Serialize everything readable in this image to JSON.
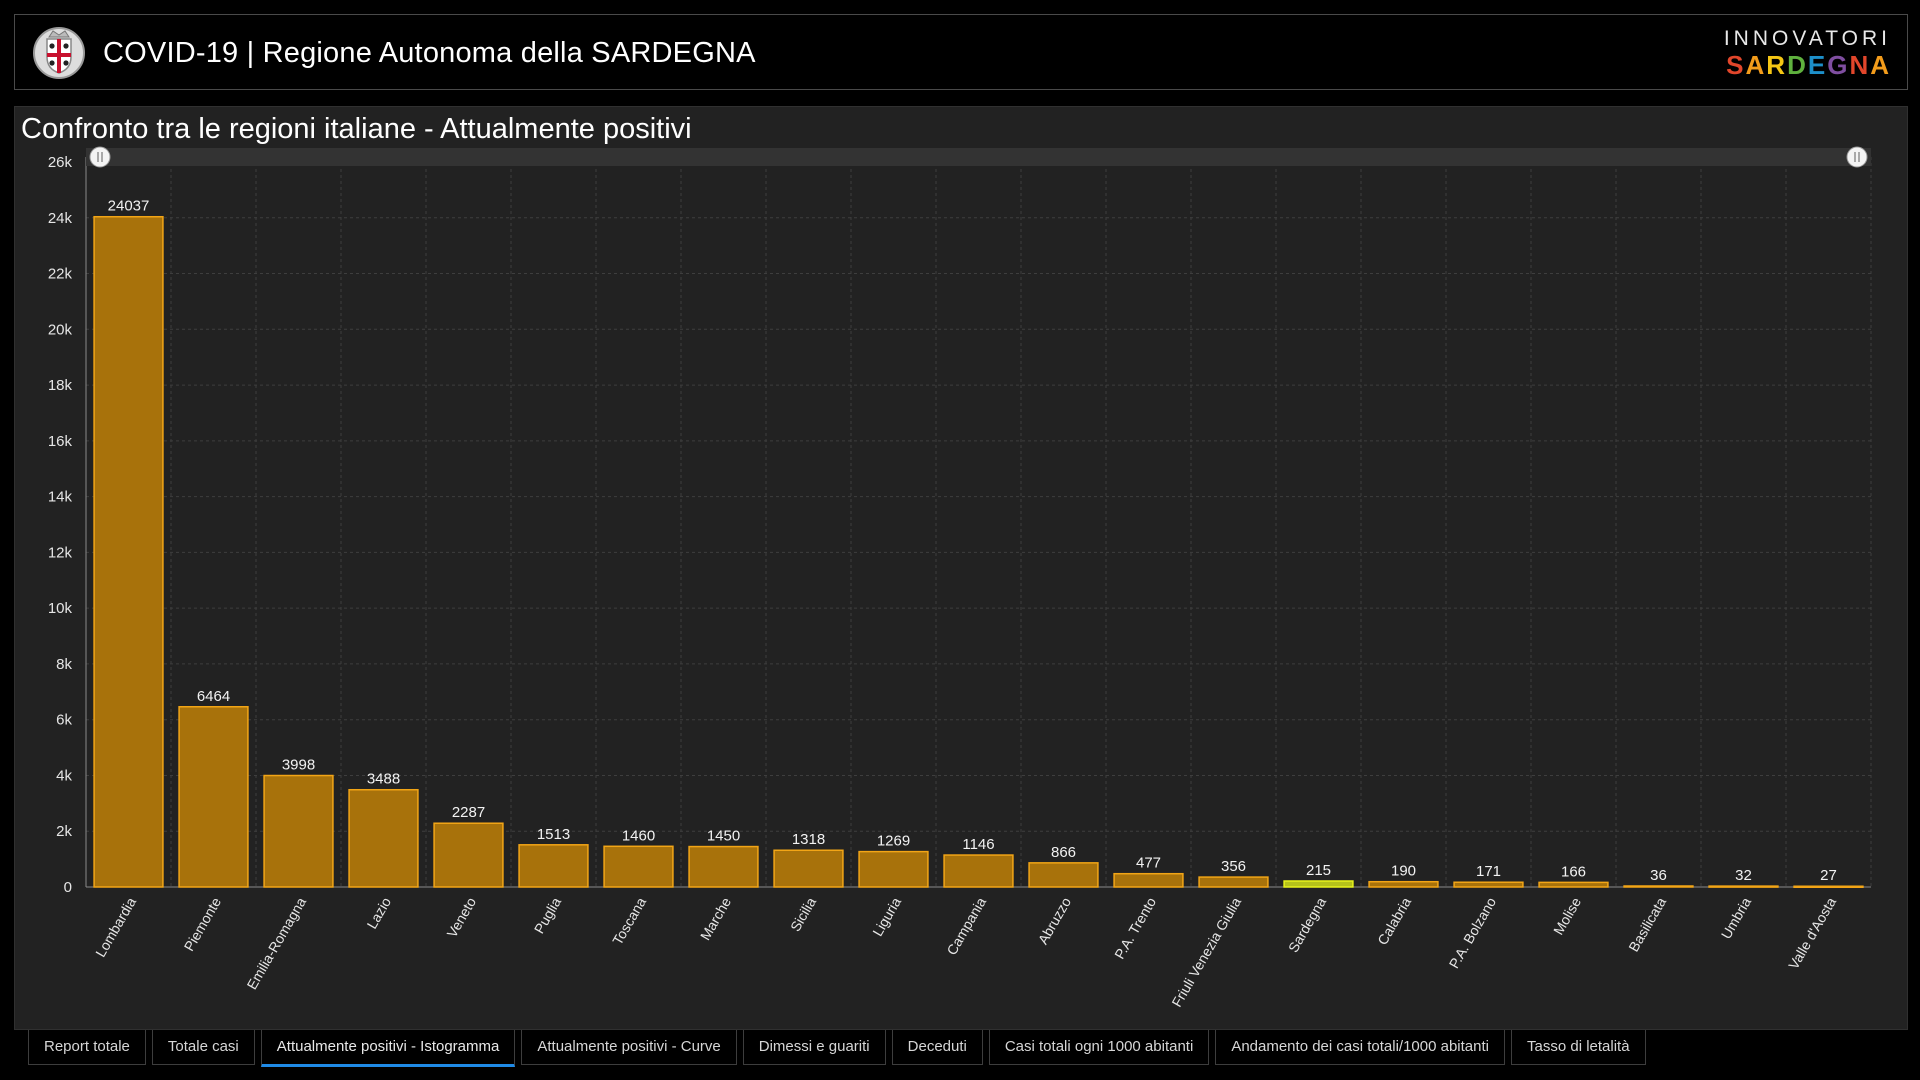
{
  "header": {
    "title": "COVID-19 | Regione Autonoma della SARDEGNA",
    "logo_icon": "sardinia-coat-of-arms-icon",
    "brand_top": "INNOVATORI",
    "brand_bottom": "SARDEGNA",
    "brand_colors": [
      "#e2462b",
      "#f39c1b",
      "#f5c614",
      "#5fb13e",
      "#1d8fc9",
      "#7f4ea0",
      "#e2462b",
      "#f39c1b"
    ]
  },
  "panel": {
    "title": "Confronto tra le regioni italiane - Attualmente positivi"
  },
  "chart_data": {
    "type": "bar",
    "title": "Confronto tra le regioni italiane - Attualmente positivi",
    "xlabel": "",
    "ylabel": "",
    "ylim": [
      0,
      26000
    ],
    "yticks": [
      "0",
      "2k",
      "4k",
      "6k",
      "8k",
      "10k",
      "12k",
      "14k",
      "16k",
      "18k",
      "20k",
      "22k",
      "24k",
      "26k"
    ],
    "grid": true,
    "categories": [
      "Lombardia",
      "Piemonte",
      "Emilia-Romagna",
      "Lazio",
      "Veneto",
      "Puglia",
      "Toscana",
      "Marche",
      "Sicilia",
      "Liguria",
      "Campania",
      "Abruzzo",
      "P.A. Trento",
      "Friuli Venezia Giulia",
      "Sardegna",
      "Calabria",
      "P.A. Bolzano",
      "Molise",
      "Basilicata",
      "Umbria",
      "Valle d'Aosta"
    ],
    "values": [
      24037,
      6464,
      3998,
      3488,
      2287,
      1513,
      1460,
      1450,
      1318,
      1269,
      1146,
      866,
      477,
      356,
      215,
      190,
      171,
      166,
      36,
      32,
      27
    ],
    "highlight": "Sardegna",
    "colors": {
      "bar": "#a8720b",
      "bar_border": "#f2a516",
      "highlight_bar": "#b5c21a",
      "highlight_border": "#e6f21c",
      "background": "#222222",
      "grid": "#3e3e3e"
    }
  },
  "tabs": [
    {
      "label": "Report totale",
      "active": false
    },
    {
      "label": "Totale casi",
      "active": false
    },
    {
      "label": "Attualmente positivi - Istogramma",
      "active": true
    },
    {
      "label": "Attualmente positivi - Curve",
      "active": false
    },
    {
      "label": "Dimessi e guariti",
      "active": false
    },
    {
      "label": "Deceduti",
      "active": false
    },
    {
      "label": "Casi totali ogni 1000 abitanti",
      "active": false
    },
    {
      "label": "Andamento dei casi totali/1000 abitanti",
      "active": false
    },
    {
      "label": "Tasso di letalità",
      "active": false
    }
  ]
}
